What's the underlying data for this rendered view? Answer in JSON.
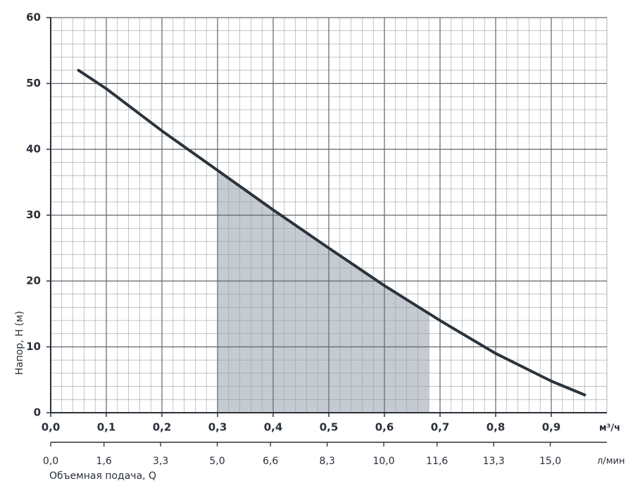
{
  "chart_data": {
    "type": "line",
    "ylabel": "Напор, H (м)",
    "xlabel": "Объемная подача, Q",
    "xunit": "м³/ч",
    "x2unit": "л/мин",
    "series": [
      {
        "name": "H",
        "color": "#2b333b",
        "x": [
          0.05,
          0.1,
          0.2,
          0.3,
          0.4,
          0.5,
          0.6,
          0.7,
          0.8,
          0.9,
          0.96
        ],
        "values": [
          52,
          49.2,
          42.8,
          36.8,
          30.8,
          25,
          19.3,
          14,
          9,
          4.8,
          2.7
        ]
      }
    ],
    "highlight_range": [
      0.3,
      0.68
    ],
    "highlight_color": "#c5cbd0",
    "xlim": [
      0,
      1
    ],
    "xticks": [
      {
        "value": 0,
        "label": "0,0"
      },
      {
        "value": 0.1,
        "label": "0,1"
      },
      {
        "value": 0.2,
        "label": "0,2"
      },
      {
        "value": 0.3,
        "label": "0,3"
      },
      {
        "value": 0.4,
        "label": "0,4"
      },
      {
        "value": 0.5,
        "label": "0,5"
      },
      {
        "value": 0.6,
        "label": "0,6"
      },
      {
        "value": 0.7,
        "label": "0,7"
      },
      {
        "value": 0.8,
        "label": "0,8"
      },
      {
        "value": 0.9,
        "label": "0,9"
      }
    ],
    "x2lim": [
      0,
      16.7
    ],
    "x2ticks": [
      {
        "value": 0,
        "label": "0,0"
      },
      {
        "value": 1.6,
        "label": "1,6"
      },
      {
        "value": 3.3,
        "label": "3,3"
      },
      {
        "value": 5,
        "label": "5,0"
      },
      {
        "value": 6.6,
        "label": "6,6"
      },
      {
        "value": 8.3,
        "label": "8,3"
      },
      {
        "value": 10,
        "label": "10,0"
      },
      {
        "value": 11.6,
        "label": "11,6"
      },
      {
        "value": 13.3,
        "label": "13,3"
      },
      {
        "value": 15,
        "label": "15,0"
      }
    ],
    "ylim": [
      0,
      60
    ],
    "yticks": [
      0,
      10,
      20,
      30,
      40,
      50,
      60
    ],
    "grid": true,
    "minor_grid": 5
  }
}
